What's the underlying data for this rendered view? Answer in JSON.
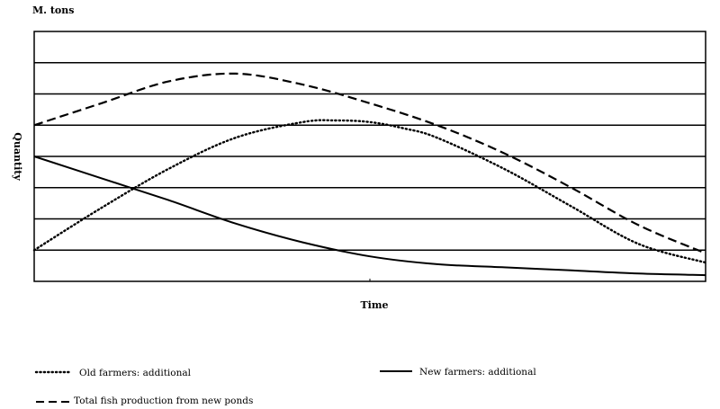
{
  "chart_data": {
    "type": "line",
    "title": "",
    "unit_label": "M. tons",
    "xlabel": "Time",
    "ylabel": "Quantity",
    "xlim": [
      0,
      100
    ],
    "ylim": [
      0,
      8
    ],
    "grid": "horizontal",
    "legend_position": "bottom",
    "series": [
      {
        "name": "Old farmers: additional",
        "style": "dotted",
        "x": [
          0,
          10,
          20,
          30,
          40,
          45,
          50,
          55,
          60,
          70,
          80,
          90,
          100
        ],
        "y": [
          1.0,
          2.35,
          3.6,
          4.6,
          5.1,
          5.15,
          5.1,
          4.9,
          4.6,
          3.6,
          2.4,
          1.2,
          0.6
        ]
      },
      {
        "name": "New farmers: additional",
        "style": "solid",
        "x": [
          0,
          10,
          20,
          30,
          40,
          50,
          60,
          70,
          80,
          90,
          100
        ],
        "y": [
          4.0,
          3.3,
          2.6,
          1.85,
          1.25,
          0.8,
          0.55,
          0.45,
          0.35,
          0.25,
          0.2
        ]
      },
      {
        "name": "Total fish production from new ponds",
        "style": "dashed",
        "x": [
          0,
          10,
          20,
          30,
          40,
          50,
          60,
          70,
          80,
          90,
          100
        ],
        "y": [
          5.0,
          5.7,
          6.4,
          6.65,
          6.3,
          5.7,
          5.0,
          4.1,
          3.0,
          1.8,
          0.9
        ]
      }
    ]
  }
}
